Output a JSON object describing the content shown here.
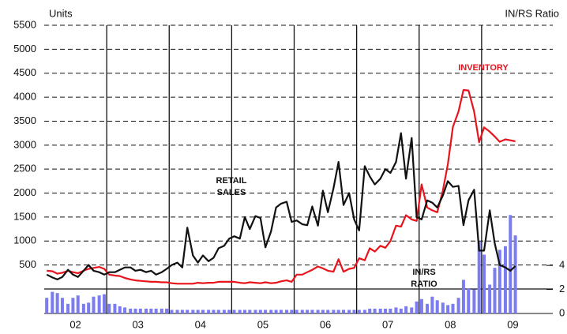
{
  "chart_data": {
    "type": "combo",
    "ylabel": "Units",
    "y2label": "IN/RS Ratio",
    "ylim": [
      0,
      5500
    ],
    "yticks": [
      500,
      1000,
      1500,
      2000,
      2500,
      3000,
      3500,
      4000,
      4500,
      5000,
      5500
    ],
    "y2lim": [
      0,
      24
    ],
    "y2ticks": [
      0,
      2,
      4
    ],
    "xlim": [
      2002,
      2010
    ],
    "xticks": [
      {
        "value": 2002.5,
        "label": "02"
      },
      {
        "value": 2003.5,
        "label": "03"
      },
      {
        "value": 2004.5,
        "label": "04"
      },
      {
        "value": 2005.5,
        "label": "05"
      },
      {
        "value": 2006.5,
        "label": "06"
      },
      {
        "value": 2007.5,
        "label": "07"
      },
      {
        "value": 2008.5,
        "label": "08"
      },
      {
        "value": 2009.5,
        "label": "09"
      }
    ],
    "xgrid": [
      2003,
      2004,
      2005,
      2006,
      2007,
      2008,
      2009
    ],
    "grid": true,
    "x": [
      2002.04,
      2002.13,
      2002.21,
      2002.29,
      2002.38,
      2002.46,
      2002.54,
      2002.63,
      2002.71,
      2002.79,
      2002.88,
      2002.96,
      2003.04,
      2003.13,
      2003.21,
      2003.29,
      2003.38,
      2003.46,
      2003.54,
      2003.63,
      2003.71,
      2003.79,
      2003.88,
      2003.96,
      2004.04,
      2004.13,
      2004.21,
      2004.29,
      2004.38,
      2004.46,
      2004.54,
      2004.63,
      2004.71,
      2004.79,
      2004.88,
      2004.96,
      2005.04,
      2005.13,
      2005.21,
      2005.29,
      2005.38,
      2005.46,
      2005.54,
      2005.63,
      2005.71,
      2005.79,
      2005.88,
      2005.96,
      2006.04,
      2006.13,
      2006.21,
      2006.29,
      2006.38,
      2006.46,
      2006.54,
      2006.63,
      2006.71,
      2006.79,
      2006.88,
      2006.96,
      2007.04,
      2007.13,
      2007.21,
      2007.29,
      2007.38,
      2007.46,
      2007.54,
      2007.63,
      2007.71,
      2007.79,
      2007.88,
      2007.96,
      2008.04,
      2008.13,
      2008.21,
      2008.29,
      2008.38,
      2008.46,
      2008.54,
      2008.63,
      2008.71,
      2008.79,
      2008.88,
      2008.96,
      2009.04,
      2009.13,
      2009.21,
      2009.29,
      2009.38,
      2009.46,
      2009.54
    ],
    "series": [
      {
        "name": "IN/RS RATIO",
        "type": "bar",
        "axis": "y2",
        "color": "#7b7bf2",
        "values": [
          1.3,
          1.8,
          1.7,
          1.3,
          0.8,
          1.3,
          1.5,
          0.8,
          0.9,
          1.4,
          1.5,
          1.6,
          0.8,
          0.8,
          0.6,
          0.5,
          0.4,
          0.4,
          0.4,
          0.4,
          0.4,
          0.4,
          0.4,
          0.4,
          0.3,
          0.3,
          0.3,
          0.3,
          0.3,
          0.3,
          0.3,
          0.3,
          0.3,
          0.3,
          0.3,
          0.3,
          0.3,
          0.3,
          0.3,
          0.3,
          0.3,
          0.3,
          0.3,
          0.3,
          0.3,
          0.3,
          0.3,
          0.3,
          0.3,
          0.3,
          0.3,
          0.3,
          0.3,
          0.3,
          0.3,
          0.3,
          0.3,
          0.3,
          0.3,
          0.3,
          0.3,
          0.3,
          0.4,
          0.4,
          0.4,
          0.4,
          0.4,
          0.5,
          0.4,
          0.6,
          0.5,
          1.0,
          1.2,
          0.8,
          1.4,
          1.1,
          0.9,
          0.7,
          0.8,
          1.3,
          2.8,
          2.1,
          2.0,
          6.0,
          4.9,
          2.4,
          3.8,
          5.3,
          5.6,
          8.2,
          6.5
        ]
      },
      {
        "name": "INVENTORY",
        "type": "line",
        "color": "#e8141c",
        "values": [
          380,
          370,
          320,
          340,
          380,
          350,
          330,
          380,
          420,
          440,
          460,
          420,
          300,
          280,
          270,
          230,
          200,
          180,
          170,
          160,
          150,
          150,
          140,
          140,
          120,
          110,
          110,
          110,
          110,
          130,
          120,
          130,
          130,
          150,
          150,
          150,
          150,
          130,
          120,
          140,
          130,
          120,
          140,
          120,
          130,
          160,
          180,
          150,
          300,
          300,
          350,
          400,
          470,
          430,
          380,
          360,
          620,
          360,
          420,
          440,
          640,
          600,
          850,
          780,
          900,
          860,
          1000,
          1320,
          1300,
          1540,
          1450,
          1420,
          2180,
          1700,
          1640,
          1600,
          2050,
          2600,
          3380,
          3700,
          4150,
          4140,
          3700,
          3060,
          3370,
          3280,
          3180,
          3070,
          3120,
          3100,
          3080
        ]
      },
      {
        "name": "RETAIL SALES",
        "type": "line",
        "color": "#111111",
        "values": [
          300,
          240,
          200,
          250,
          400,
          300,
          250,
          380,
          500,
          380,
          350,
          300,
          350,
          350,
          400,
          450,
          450,
          380,
          400,
          350,
          380,
          300,
          350,
          420,
          500,
          550,
          450,
          1280,
          700,
          550,
          700,
          580,
          650,
          850,
          900,
          1050,
          1100,
          1050,
          1500,
          1250,
          1520,
          1480,
          870,
          1200,
          1700,
          1780,
          1820,
          1400,
          1430,
          1350,
          1330,
          1720,
          1320,
          2050,
          1600,
          2100,
          2650,
          1750,
          2000,
          1450,
          1220,
          2560,
          2350,
          2180,
          2300,
          2500,
          2420,
          2650,
          3250,
          2300,
          3150,
          1500,
          1450,
          1850,
          1800,
          1700,
          1950,
          2250,
          2130,
          2150,
          1330,
          1850,
          2070,
          800,
          800,
          1640,
          950,
          500,
          450,
          380,
          480
        ]
      }
    ],
    "annotations": [
      {
        "lines": [
          "INVENTORY"
        ],
        "color": "#e8141c"
      },
      {
        "lines": [
          "RETAIL",
          "SALES"
        ],
        "color": "#111111"
      },
      {
        "lines": [
          "IN/RS",
          "RATIO"
        ],
        "color": "#111111"
      }
    ]
  }
}
